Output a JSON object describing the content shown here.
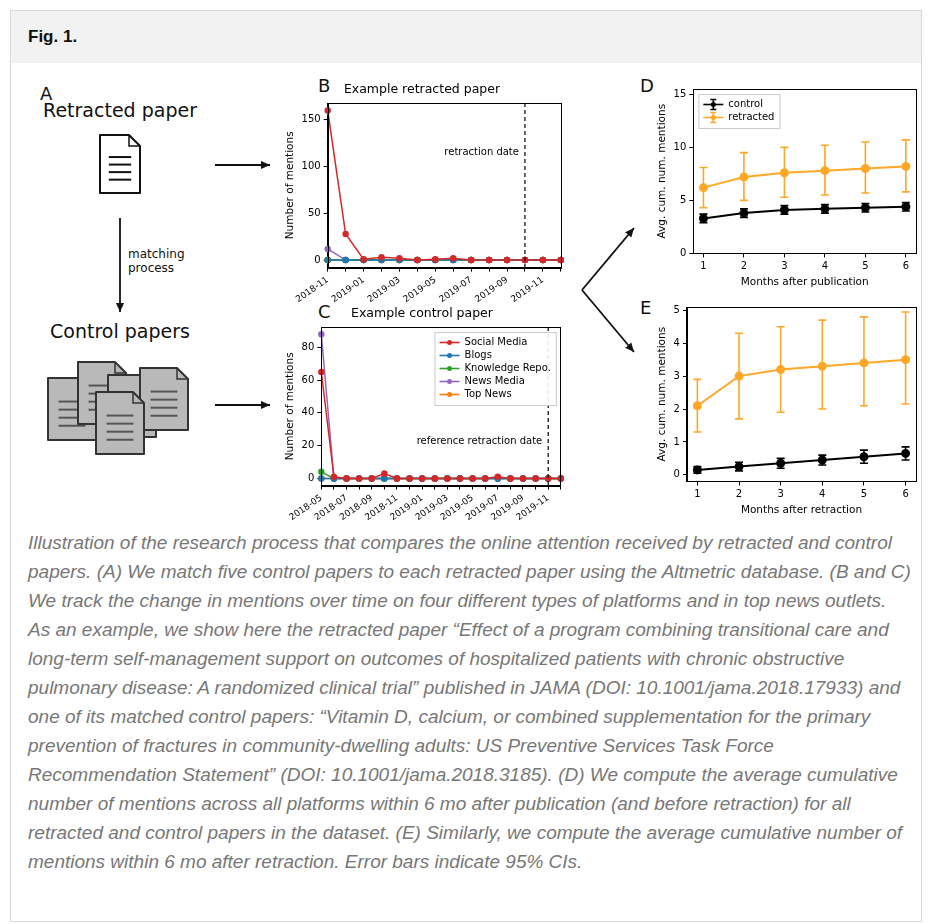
{
  "header": "Fig. 1.",
  "diagram": {
    "panel": "A",
    "retracted": "Retracted paper",
    "matching": "matching process",
    "control": "Control papers"
  },
  "chart_data": [
    {
      "panel": "B",
      "type": "line",
      "title": "Example retracted paper",
      "y_label": "Number of mentions",
      "categories": [
        "2018-11",
        null,
        "2019-01",
        null,
        "2019-03",
        null,
        "2019-05",
        null,
        "2019-07",
        null,
        "2019-09",
        null,
        "2019-11",
        null
      ],
      "series": [
        {
          "name": "Social Media",
          "color": "#d62728",
          "values": [
            160,
            28,
            1,
            3,
            2,
            0,
            1,
            2,
            0,
            0,
            0,
            0,
            0,
            0
          ]
        },
        {
          "name": "Blogs",
          "color": "#1f77b4",
          "values": [
            0,
            0,
            0,
            0,
            0,
            0,
            0,
            0,
            0,
            0,
            0,
            0,
            0,
            0
          ]
        },
        {
          "name": "Knowledge Repo.",
          "color": "#2ca02c",
          "values": [
            0,
            0,
            0,
            0,
            0,
            0,
            0,
            0,
            0,
            0,
            0,
            0,
            0,
            0
          ]
        },
        {
          "name": "News Media",
          "color": "#9467bd",
          "values": [
            12,
            0,
            0,
            0,
            0,
            0,
            0,
            0,
            0,
            0,
            0,
            0,
            0,
            0
          ]
        },
        {
          "name": "Top News",
          "color": "#ff7f0e",
          "values": [
            0,
            0,
            0,
            0,
            0,
            0,
            0,
            0,
            0,
            0,
            0,
            0,
            0,
            0
          ]
        }
      ],
      "marker": "circle",
      "ylim": [
        -8,
        168
      ],
      "yticks": [
        0,
        50,
        100,
        150
      ],
      "grid": false,
      "annotation": {
        "text": "retraction date",
        "x_index": 11
      }
    },
    {
      "panel": "C",
      "type": "line",
      "title": "Example control paper",
      "y_label": "Number of mentions",
      "categories": [
        "2018-05",
        null,
        "2018-07",
        null,
        "2018-09",
        null,
        "2018-11",
        null,
        "2019-01",
        null,
        "2019-03",
        null,
        "2019-05",
        null,
        "2019-07",
        null,
        "2019-09",
        null,
        "2019-11",
        null
      ],
      "series": [
        {
          "name": "Social Media",
          "color": "#d62728",
          "values": [
            65,
            1,
            0,
            0,
            0,
            3,
            0,
            0,
            0,
            0,
            0,
            0,
            0,
            0,
            1,
            0,
            0,
            0,
            0,
            0
          ]
        },
        {
          "name": "Blogs",
          "color": "#1f77b4",
          "values": [
            0,
            0,
            0,
            0,
            0,
            0,
            0,
            0,
            0,
            0,
            0,
            0,
            0,
            0,
            0,
            0,
            0,
            0,
            0,
            0
          ]
        },
        {
          "name": "Knowledge Repo.",
          "color": "#2ca02c",
          "values": [
            4,
            0,
            0,
            0,
            0,
            0,
            0,
            0,
            0,
            0,
            0,
            0,
            0,
            0,
            0,
            0,
            0,
            0,
            0,
            0
          ]
        },
        {
          "name": "News Media",
          "color": "#9467bd",
          "values": [
            88,
            0,
            0,
            0,
            0,
            0,
            0,
            0,
            0,
            0,
            0,
            0,
            0,
            0,
            0,
            0,
            0,
            0,
            0,
            0
          ]
        },
        {
          "name": "Top News",
          "color": "#ff7f0e",
          "values": [
            0,
            0,
            0,
            0,
            0,
            0,
            0,
            0,
            0,
            0,
            0,
            0,
            0,
            0,
            0,
            0,
            0,
            0,
            0,
            0
          ]
        }
      ],
      "marker": "circle",
      "ylim": [
        -4.4,
        92.4
      ],
      "yticks": [
        0,
        20,
        40,
        60,
        80
      ],
      "grid": false,
      "legend": "upper right",
      "annotation": {
        "text": "reference retraction date",
        "x_index": 18
      }
    },
    {
      "panel": "D",
      "type": "line",
      "x_label": "Months after publication",
      "y_label": "Avg. cum. num. mentions",
      "x": [
        1,
        2,
        3,
        4,
        5,
        6
      ],
      "series": [
        {
          "name": "control",
          "color": "#000000",
          "values": [
            3.3,
            3.8,
            4.1,
            4.2,
            4.3,
            4.4
          ],
          "error_low": [
            2.9,
            3.4,
            3.7,
            3.8,
            3.9,
            4.0
          ],
          "error_high": [
            3.7,
            4.2,
            4.5,
            4.6,
            4.7,
            4.8
          ]
        },
        {
          "name": "retracted",
          "color": "#ffa726",
          "values": [
            6.2,
            7.2,
            7.6,
            7.8,
            8.0,
            8.2
          ],
          "error_low": [
            4.3,
            5.0,
            5.3,
            5.5,
            5.7,
            5.8
          ],
          "error_high": [
            8.1,
            9.5,
            10.0,
            10.2,
            10.5,
            10.7
          ]
        }
      ],
      "marker": "circle",
      "xlim": [
        0.75,
        6.25
      ],
      "xticks": [
        1,
        2,
        3,
        4,
        5,
        6
      ],
      "ylim": [
        0,
        15.5
      ],
      "yticks": [
        0,
        5,
        10,
        15
      ],
      "grid": false,
      "legend": "upper left"
    },
    {
      "panel": "E",
      "type": "line",
      "x_label": "Months after retraction",
      "y_label": "Avg. cum. num. mentions",
      "x": [
        1,
        2,
        3,
        4,
        5,
        6
      ],
      "series": [
        {
          "name": "control",
          "color": "#000000",
          "values": [
            0.15,
            0.25,
            0.35,
            0.45,
            0.55,
            0.65
          ],
          "error_low": [
            0.05,
            0.12,
            0.2,
            0.3,
            0.35,
            0.45
          ],
          "error_high": [
            0.25,
            0.38,
            0.5,
            0.6,
            0.75,
            0.85
          ]
        },
        {
          "name": "retracted",
          "color": "#ffa726",
          "values": [
            2.1,
            3.0,
            3.2,
            3.3,
            3.4,
            3.5
          ],
          "error_low": [
            1.3,
            1.7,
            1.9,
            2.0,
            2.1,
            2.15
          ],
          "error_high": [
            2.9,
            4.3,
            4.5,
            4.7,
            4.8,
            4.95
          ]
        }
      ],
      "marker": "circle",
      "xlim": [
        0.75,
        6.25
      ],
      "xticks": [
        1,
        2,
        3,
        4,
        5,
        6
      ],
      "ylim": [
        -0.2,
        5.1
      ],
      "yticks": [
        0,
        1,
        2,
        3,
        4,
        5
      ],
      "grid": false
    }
  ],
  "caption": "Illustration of the research process that compares the online attention received by retracted and control papers. (A) We match five control papers to each retracted paper using the Altmetric database. (B and C) We track the change in mentions over time on four different types of platforms and in top news outlets. As an example, we show here the retracted paper “Effect of a program combining transitional care and long-term self-management support on outcomes of hospitalized patients with chronic obstructive pulmonary disease: A randomized clinical trial” published in JAMA (DOI: 10.1001/jama.2018.17933) and one of its matched control papers: “Vitamin D, calcium, or combined supplementation for the primary prevention of fractures in community-dwelling adults: US Preventive Services Task Force Recommendation Statement” (DOI: 10.1001/jama.2018.3185). (D) We compute the average cumulative number of mentions across all platforms within 6 mo after publication (and before retraction) for all retracted and control papers in the dataset. (E) Similarly, we compute the average cumulative number of mentions within 6 mo after retraction. Error bars indicate 95% CIs."
}
